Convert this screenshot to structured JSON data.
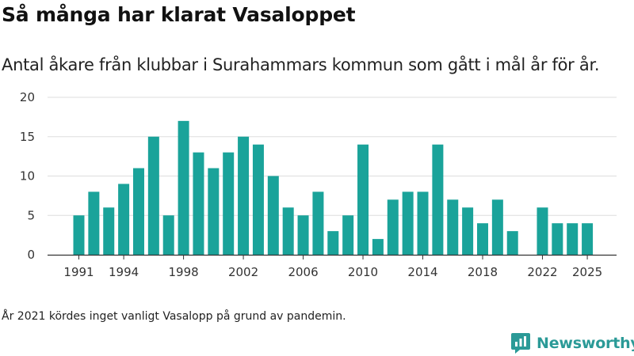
{
  "title": "Så många har klarat Vasaloppet",
  "subtitle": "Antal åkare från klubbar i Surahammars kommun som gått i mål år för år.",
  "footnote": "År 2021 kördes inget vanligt Vasalopp på grund av pandemin.",
  "brand": {
    "name": "Newsworthy",
    "icon": "newsworthy-logo-icon",
    "color": "#2b9a97"
  },
  "colors": {
    "bar": "#1aa39a",
    "grid": "#dddddd",
    "axis": "#333333"
  },
  "chart_data": {
    "type": "bar",
    "x": [
      1991,
      1992,
      1993,
      1994,
      1995,
      1996,
      1997,
      1998,
      1999,
      2000,
      2001,
      2002,
      2003,
      2004,
      2005,
      2006,
      2007,
      2008,
      2009,
      2010,
      2011,
      2012,
      2013,
      2014,
      2015,
      2016,
      2017,
      2018,
      2019,
      2020,
      2021,
      2022,
      2023,
      2024,
      2025
    ],
    "values": [
      5,
      8,
      6,
      9,
      11,
      15,
      5,
      17,
      13,
      11,
      13,
      15,
      14,
      10,
      6,
      5,
      8,
      3,
      5,
      14,
      2,
      7,
      8,
      8,
      14,
      7,
      6,
      4,
      7,
      3,
      null,
      6,
      4,
      4,
      4
    ],
    "xticks": [
      "1991",
      "1994",
      "1998",
      "2002",
      "2006",
      "2010",
      "2014",
      "2018",
      "2022",
      "2025"
    ],
    "yticks": [
      "0",
      "5",
      "10",
      "15",
      "20"
    ],
    "ylim": [
      0,
      20
    ],
    "grid": "horizontal"
  }
}
